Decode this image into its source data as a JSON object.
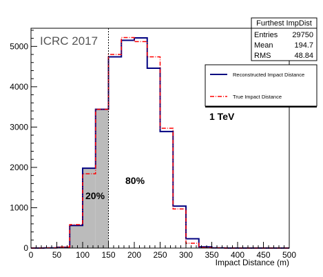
{
  "watermark": "ICRC 2017",
  "stats_box": {
    "title": "Furthest ImpDist",
    "rows": [
      {
        "label": "Entries",
        "value": "29750"
      },
      {
        "label": "Mean",
        "value": "194.7"
      },
      {
        "label": "RMS",
        "value": "48.84"
      }
    ]
  },
  "annotations": {
    "energy": "1 TeV",
    "left_fraction": "20%",
    "right_fraction": "80%"
  },
  "colors": {
    "reco": "#000080",
    "true": "#ff0000",
    "fill": "#bbbbbb"
  },
  "chart_data": {
    "type": "histogram",
    "xlabel": "Impact Distance (m)",
    "ylabel": "",
    "xlim": [
      0,
      500
    ],
    "ylim": [
      0,
      5450
    ],
    "x_ticks": [
      "0",
      "50",
      "100",
      "150",
      "200",
      "250",
      "300",
      "350",
      "400",
      "450",
      "500"
    ],
    "y_ticks": [
      "0",
      "1000",
      "2000",
      "3000",
      "4000",
      "5000"
    ],
    "bin_edges": [
      0,
      25,
      50,
      75,
      100,
      125,
      150,
      175,
      200,
      225,
      250,
      275,
      300,
      325,
      350,
      375,
      400,
      425,
      450,
      475,
      500
    ],
    "series": [
      {
        "name": "Reconstructed Impact Distance",
        "style": "solid",
        "values": [
          0,
          5,
          20,
          560,
          1980,
          3440,
          4740,
          5150,
          5210,
          4460,
          2890,
          1040,
          230,
          30,
          5,
          0,
          0,
          0,
          0,
          0
        ]
      },
      {
        "name": "True Impact Distance",
        "style": "dash-dot",
        "values": [
          0,
          5,
          25,
          580,
          1840,
          3440,
          4800,
          5220,
          5120,
          4740,
          2970,
          970,
          120,
          10,
          5,
          0,
          0,
          0,
          0,
          0
        ]
      }
    ],
    "shaded_range": [
      75,
      150
    ],
    "cut_line_x": 150,
    "grid": false,
    "legend_position": "right"
  }
}
